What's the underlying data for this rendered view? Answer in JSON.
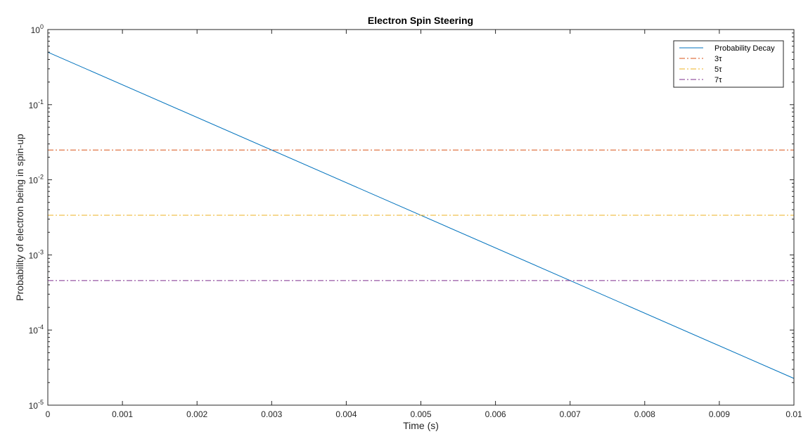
{
  "chart_data": {
    "type": "line",
    "title": "Electron Spin Steering",
    "xlabel": "Time (s)",
    "ylabel": "Probability of electron being in spin-up",
    "xlim": [
      0,
      0.01
    ],
    "ylim": [
      1e-05,
      1
    ],
    "yscale": "log",
    "grid": false,
    "legend_position": "top-right",
    "x_ticks": [
      0,
      0.001,
      0.002,
      0.003,
      0.004,
      0.005,
      0.006,
      0.007,
      0.008,
      0.009,
      0.01
    ],
    "x_tick_labels": [
      "0",
      "0.001",
      "0.002",
      "0.003",
      "0.004",
      "0.005",
      "0.006",
      "0.007",
      "0.008",
      "0.009",
      "0.01"
    ],
    "y_ticks": [
      {
        "value": 1,
        "base": "10",
        "exp": "0"
      },
      {
        "value": 0.1,
        "base": "10",
        "exp": "-1"
      },
      {
        "value": 0.01,
        "base": "10",
        "exp": "-2"
      },
      {
        "value": 0.001,
        "base": "10",
        "exp": "-3"
      },
      {
        "value": 0.0001,
        "base": "10",
        "exp": "-4"
      },
      {
        "value": 1e-05,
        "base": "10",
        "exp": "-5"
      }
    ],
    "series": [
      {
        "name": "Probability Decay",
        "x": [
          0,
          0.01
        ],
        "y": [
          0.5,
          2.27e-05
        ],
        "color": "#0072BD",
        "dash": "solid"
      },
      {
        "name": "3τ",
        "x": [
          0,
          0.01
        ],
        "y": [
          0.0249,
          0.0249
        ],
        "color": "#D95319",
        "dash": "dashdot"
      },
      {
        "name": "5τ",
        "x": [
          0,
          0.01
        ],
        "y": [
          0.00337,
          0.00337
        ],
        "color": "#EDB120",
        "dash": "dashdot"
      },
      {
        "name": "7τ",
        "x": [
          0,
          0.01
        ],
        "y": [
          0.000456,
          0.000456
        ],
        "color": "#7E2F8E",
        "dash": "dashdot"
      }
    ]
  }
}
